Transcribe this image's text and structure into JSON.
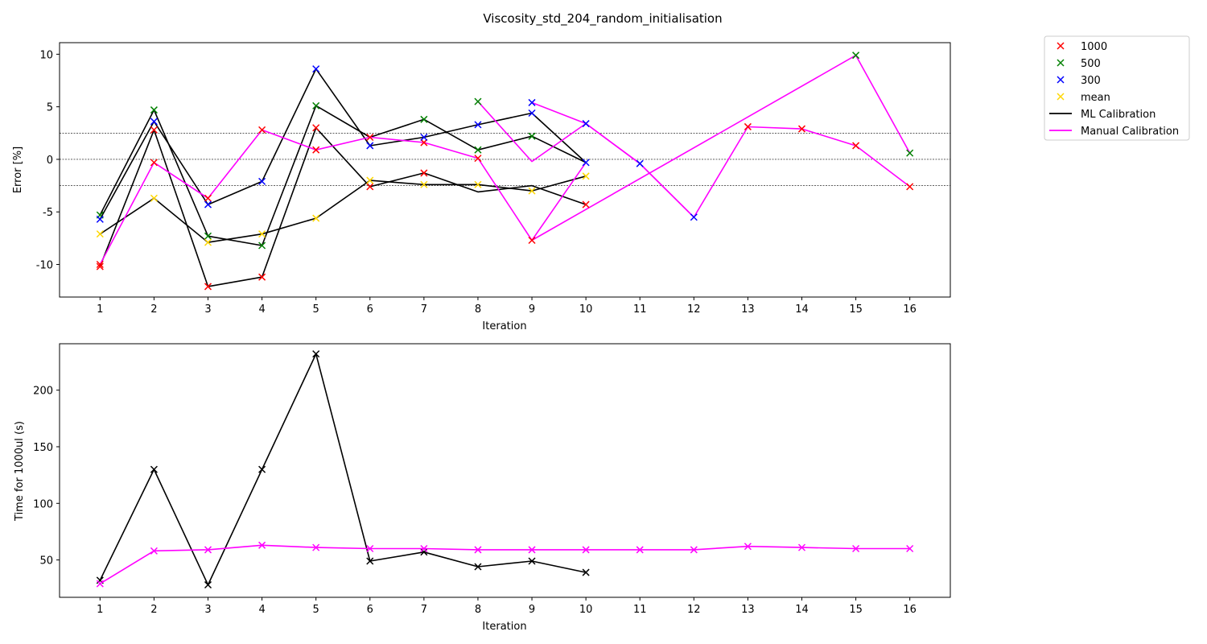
{
  "figure": {
    "title": "Viscosity_std_204_random_initialisation"
  },
  "legend": {
    "placement": "outside-top-right",
    "entries": [
      {
        "label": "1000",
        "marker": "x",
        "color": "#ff0000"
      },
      {
        "label": "500",
        "marker": "x",
        "color": "#008000"
      },
      {
        "label": "300",
        "marker": "x",
        "color": "#0000ff"
      },
      {
        "label": "mean",
        "marker": "x",
        "color": "#ffd700"
      },
      {
        "label": "ML Calibration",
        "marker": "line",
        "color": "#000000"
      },
      {
        "label": "Manual Calibration",
        "marker": "line",
        "color": "#ff00ff"
      }
    ]
  },
  "chart_data": [
    {
      "type": "line",
      "xlabel": "Iteration",
      "ylabel": "Error [%]",
      "xlim": [
        0.25,
        16.75
      ],
      "ylim": [
        -13.1,
        11.1
      ],
      "xticks": [
        1,
        2,
        3,
        4,
        5,
        6,
        7,
        8,
        9,
        10,
        11,
        12,
        13,
        14,
        15,
        16
      ],
      "yticks": [
        -10,
        -5,
        0,
        5,
        10
      ],
      "reference_lines": [
        2.5,
        0,
        -2.5
      ],
      "grid": false,
      "ml_lines": [
        {
          "color": "#000000",
          "x": [
            1,
            2,
            3,
            4,
            5,
            6,
            7,
            8,
            9,
            10
          ],
          "y": [
            -10.2,
            2.8,
            -12.1,
            -11.2,
            3.0,
            -2.6,
            -1.3,
            -3.1,
            -2.5,
            -4.3
          ]
        },
        {
          "color": "#000000",
          "x": [
            1,
            2,
            3,
            4,
            5,
            6,
            7,
            8,
            9,
            10
          ],
          "y": [
            -5.3,
            4.7,
            -7.3,
            -8.2,
            5.1,
            2.1,
            3.8,
            0.9,
            2.2,
            -0.3
          ]
        },
        {
          "color": "#000000",
          "x": [
            1,
            2,
            3,
            4,
            5,
            6,
            7,
            8,
            9,
            10
          ],
          "y": [
            -5.7,
            3.6,
            -4.3,
            -2.1,
            8.6,
            1.3,
            2.1,
            3.3,
            4.4,
            -0.3
          ]
        },
        {
          "color": "#000000",
          "x": [
            1,
            2,
            3,
            4,
            5,
            6,
            7,
            8,
            9,
            10
          ],
          "y": [
            -7.1,
            -3.7,
            -7.9,
            -7.1,
            -5.6,
            -2.0,
            -2.4,
            -2.4,
            -3.0,
            -1.6
          ]
        }
      ],
      "manual_lines": [
        {
          "color": "#ff00ff",
          "x": [
            1,
            2,
            3,
            4,
            5,
            6,
            7,
            8,
            9,
            10
          ],
          "y": [
            -10.0,
            -0.3,
            -3.7,
            2.8,
            0.9,
            2.1,
            1.6,
            0.1,
            -7.7,
            -0.3
          ]
        },
        {
          "color": "#ff00ff",
          "x": [
            8,
            9,
            10,
            11,
            12
          ],
          "y": [
            5.5,
            -0.2,
            3.4,
            -0.4,
            -5.5
          ]
        },
        {
          "color": "#ff00ff",
          "x": [
            9,
            10,
            11,
            12,
            13,
            14,
            15,
            16
          ],
          "y": [
            5.4,
            3.4,
            -0.4,
            -5.5,
            3.1,
            2.9,
            1.3,
            -2.6
          ]
        },
        {
          "color": "#ff00ff",
          "x": [
            9,
            15,
            16
          ],
          "y": [
            -7.7,
            9.9,
            0.6
          ]
        }
      ],
      "series": [
        {
          "name": "1000",
          "color": "#ff0000",
          "x": [
            1,
            2,
            3,
            4,
            5,
            6,
            7,
            1,
            2,
            3,
            4,
            5,
            6,
            7,
            8,
            9,
            10,
            13,
            14,
            15,
            16
          ],
          "y": [
            -10.2,
            2.8,
            -12.1,
            -11.2,
            3.0,
            -2.6,
            -1.3,
            -10.0,
            -0.3,
            -3.7,
            2.8,
            0.9,
            2.1,
            1.6,
            0.1,
            -7.7,
            -4.3,
            3.1,
            2.9,
            1.3,
            -2.6
          ]
        },
        {
          "name": "500",
          "color": "#008000",
          "x": [
            1,
            2,
            3,
            4,
            5,
            7,
            8,
            9,
            8,
            15,
            16
          ],
          "y": [
            -5.3,
            4.7,
            -7.3,
            -8.2,
            5.1,
            3.8,
            0.9,
            2.2,
            5.5,
            9.9,
            0.6
          ]
        },
        {
          "name": "300",
          "color": "#0000ff",
          "x": [
            1,
            2,
            3,
            4,
            5,
            6,
            7,
            8,
            9,
            9,
            10,
            10,
            11,
            12
          ],
          "y": [
            -5.7,
            3.6,
            -4.3,
            -2.1,
            8.6,
            1.3,
            2.1,
            3.3,
            4.4,
            5.4,
            3.4,
            -0.3,
            -0.4,
            -5.5
          ]
        },
        {
          "name": "mean",
          "color": "#ffd700",
          "x": [
            1,
            2,
            3,
            4,
            5,
            6,
            7,
            8,
            9,
            10
          ],
          "y": [
            -7.1,
            -3.7,
            -7.9,
            -7.1,
            -5.6,
            -2.0,
            -2.4,
            -2.4,
            -3.0,
            -1.6
          ]
        }
      ]
    },
    {
      "type": "line",
      "xlabel": "Iteration",
      "ylabel": "Time for 1000ul (s)",
      "xlim": [
        0.25,
        16.75
      ],
      "ylim": [
        17,
        241
      ],
      "xticks": [
        1,
        2,
        3,
        4,
        5,
        6,
        7,
        8,
        9,
        10,
        11,
        12,
        13,
        14,
        15,
        16
      ],
      "yticks": [
        50,
        100,
        150,
        200
      ],
      "grid": false,
      "series": [
        {
          "color": "#000000",
          "x": [
            1,
            2,
            3,
            4,
            5,
            6,
            7,
            8,
            9,
            10
          ],
          "y": [
            32,
            130,
            28,
            130,
            232,
            49,
            57,
            44,
            49,
            39
          ]
        },
        {
          "color": "#ff00ff",
          "x": [
            1,
            2,
            3,
            4,
            5,
            6,
            7,
            8,
            9,
            10,
            11,
            12,
            13,
            14,
            15,
            16
          ],
          "y": [
            29,
            58,
            59,
            63,
            61,
            60,
            60,
            59,
            59,
            59,
            59,
            59,
            62,
            61,
            60,
            60
          ]
        }
      ]
    }
  ]
}
